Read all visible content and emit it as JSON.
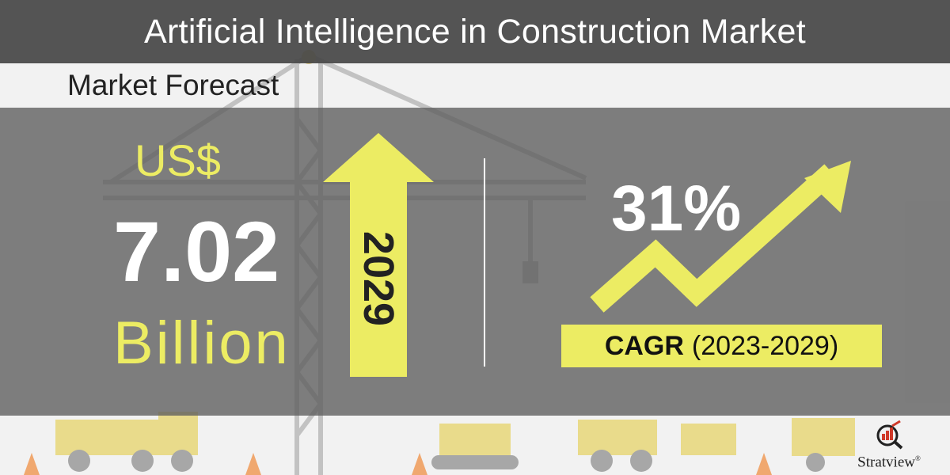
{
  "header": {
    "title": "Artificial Intelligence in Construction Market"
  },
  "section": {
    "subtitle": "Market Forecast"
  },
  "market_size": {
    "currency": "US$",
    "value": "7.02",
    "unit": "Billion",
    "year": "2029"
  },
  "growth": {
    "cagr_value": "31%",
    "cagr_label": "CAGR",
    "period": "(2023-2029)"
  },
  "brand": {
    "name": "Stratview",
    "registered_mark": "®"
  },
  "colors": {
    "accent_yellow": "#ecec63",
    "header_bg": "#464646",
    "panel_bg": "#5f5f5f",
    "value_white": "#ffffff"
  },
  "icons": {
    "up_arrow": "up-arrow-icon",
    "trend": "trend-arrow-icon",
    "logo": "stratview-logo-icon"
  }
}
